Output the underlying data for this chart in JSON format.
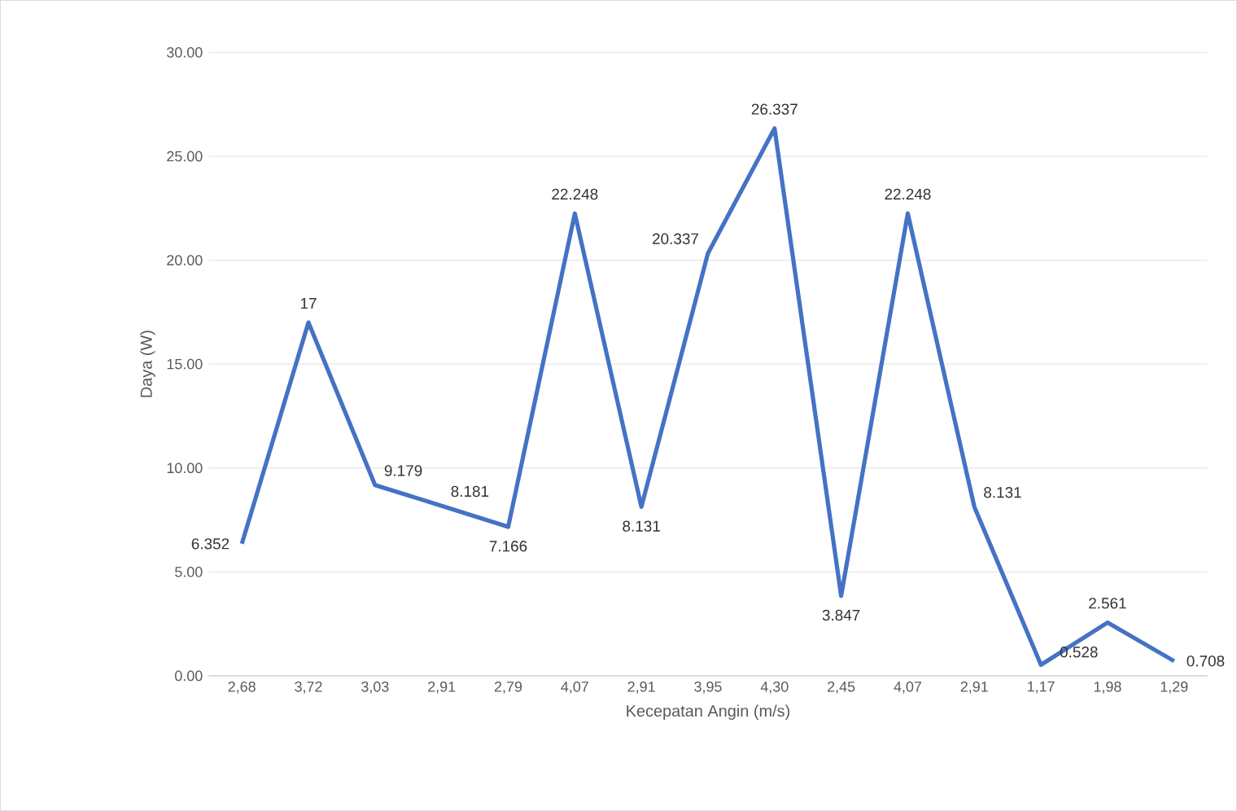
{
  "chart_data": {
    "type": "line",
    "xlabel": "Kecepatan Angin (m/s)",
    "ylabel": "Daya (W)",
    "data_labels": true,
    "categories": [
      "2,68",
      "3,72",
      "3,03",
      "2,91",
      "2,79",
      "4,07",
      "2,91",
      "3,95",
      "4,30",
      "2,45",
      "4,07",
      "2,91",
      "1,17",
      "1,98",
      "1,29"
    ],
    "series": [
      {
        "color": "#4472c4",
        "values": [
          6.352,
          17,
          9.179,
          8.181,
          7.166,
          22.248,
          8.131,
          20.337,
          26.337,
          3.847,
          22.248,
          8.131,
          0.528,
          2.561,
          0.708
        ]
      }
    ],
    "ylim": [
      0,
      30
    ],
    "yticks": [
      {
        "value": 0,
        "label": "0.00"
      },
      {
        "value": 5,
        "label": "5.00"
      },
      {
        "value": 10,
        "label": "10.00"
      },
      {
        "value": 15,
        "label": "15.00"
      },
      {
        "value": 20,
        "label": "20.00"
      },
      {
        "value": 25,
        "label": "25.00"
      },
      {
        "value": 30,
        "label": "30.00"
      }
    ],
    "grid": "y",
    "marker": "none",
    "line_style": "solid"
  }
}
